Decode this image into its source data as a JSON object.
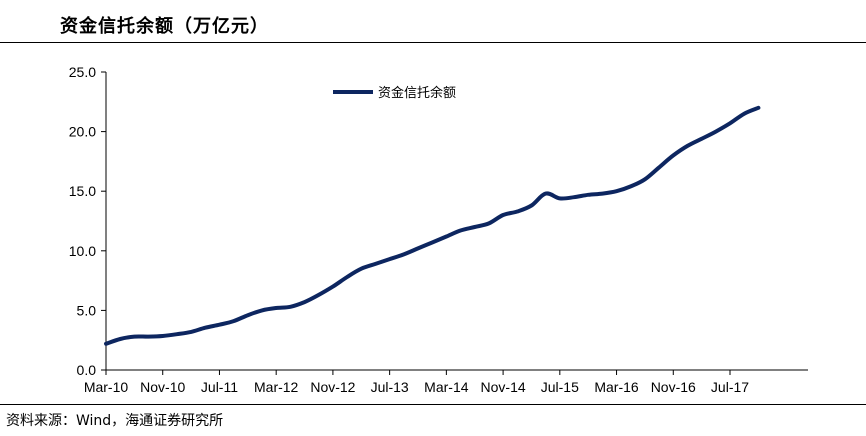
{
  "header": {
    "title": "资金信托余额（万亿元）"
  },
  "footer": {
    "source": "资料来源：Wind，海通证券研究所"
  },
  "chart_data": {
    "type": "line",
    "title": "资金信托余额（万亿元）",
    "xlabel": "",
    "ylabel": "",
    "ylim": [
      0,
      25
    ],
    "yticks": [
      "0.0",
      "5.0",
      "10.0",
      "15.0",
      "20.0",
      "25.0"
    ],
    "x_tick_labels": [
      "Mar-10",
      "Nov-10",
      "Jul-11",
      "Mar-12",
      "Nov-12",
      "Jul-13",
      "Mar-14",
      "Nov-14",
      "Jul-15",
      "Mar-16",
      "Nov-16",
      "Jul-17"
    ],
    "grid": false,
    "legend": {
      "position": "top-center"
    },
    "series": [
      {
        "name": "资金信托余额",
        "color": "#0d2660",
        "points": [
          [
            "2010-03",
            2.2
          ],
          [
            "2010-05",
            2.6
          ],
          [
            "2010-07",
            2.8
          ],
          [
            "2010-09",
            2.8
          ],
          [
            "2010-11",
            2.85
          ],
          [
            "2011-01",
            3.0
          ],
          [
            "2011-03",
            3.2
          ],
          [
            "2011-05",
            3.55
          ],
          [
            "2011-07",
            3.8
          ],
          [
            "2011-09",
            4.1
          ],
          [
            "2011-11",
            4.6
          ],
          [
            "2012-01",
            5.0
          ],
          [
            "2012-03",
            5.2
          ],
          [
            "2012-05",
            5.3
          ],
          [
            "2012-07",
            5.7
          ],
          [
            "2012-09",
            6.3
          ],
          [
            "2012-11",
            7.0
          ],
          [
            "2013-01",
            7.8
          ],
          [
            "2013-03",
            8.5
          ],
          [
            "2013-05",
            8.9
          ],
          [
            "2013-07",
            9.3
          ],
          [
            "2013-09",
            9.7
          ],
          [
            "2013-11",
            10.2
          ],
          [
            "2014-01",
            10.7
          ],
          [
            "2014-03",
            11.2
          ],
          [
            "2014-05",
            11.7
          ],
          [
            "2014-07",
            12.0
          ],
          [
            "2014-09",
            12.3
          ],
          [
            "2014-11",
            13.0
          ],
          [
            "2015-01",
            13.3
          ],
          [
            "2015-03",
            13.8
          ],
          [
            "2015-05",
            14.8
          ],
          [
            "2015-07",
            14.4
          ],
          [
            "2015-09",
            14.5
          ],
          [
            "2015-11",
            14.7
          ],
          [
            "2016-01",
            14.8
          ],
          [
            "2016-03",
            15.0
          ],
          [
            "2016-05",
            15.4
          ],
          [
            "2016-07",
            16.0
          ],
          [
            "2016-09",
            17.0
          ],
          [
            "2016-11",
            18.0
          ],
          [
            "2017-01",
            18.8
          ],
          [
            "2017-03",
            19.4
          ],
          [
            "2017-05",
            20.0
          ],
          [
            "2017-07",
            20.7
          ],
          [
            "2017-09",
            21.5
          ],
          [
            "2017-11",
            22.0
          ]
        ]
      }
    ]
  }
}
